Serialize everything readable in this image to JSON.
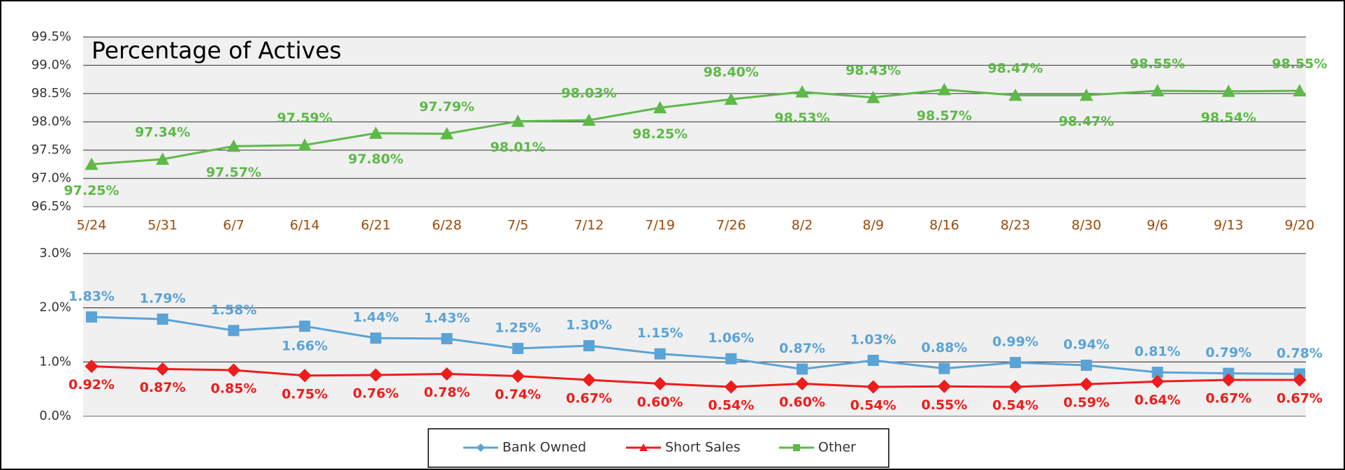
{
  "chart_data": [
    {
      "type": "line",
      "title": "Percentage of Actives",
      "categories": [
        "5/24",
        "5/31",
        "6/7",
        "6/14",
        "6/21",
        "6/28",
        "7/5",
        "7/12",
        "7/19",
        "7/26",
        "8/2",
        "8/9",
        "8/16",
        "8/23",
        "8/30",
        "9/6",
        "9/13",
        "9/20"
      ],
      "ylim": [
        96.5,
        99.5
      ],
      "yticks": [
        {
          "value": 96.5,
          "label": "96.5%"
        },
        {
          "value": 97,
          "label": "97.0%"
        },
        {
          "value": 97.5,
          "label": "97.5%"
        },
        {
          "value": 98,
          "label": "98.0%"
        },
        {
          "value": 98.5,
          "label": "98.5%"
        },
        {
          "value": 99,
          "label": "99.0%"
        },
        {
          "value": 99.5,
          "label": "99.5%"
        }
      ],
      "grid": true,
      "series": [
        {
          "name": "Other",
          "color": "#5db948",
          "marker": "triangle",
          "legend_marker": "square",
          "values": [
            97.25,
            97.34,
            97.57,
            97.59,
            97.8,
            97.79,
            98.01,
            98.03,
            98.25,
            98.4,
            98.53,
            98.43,
            98.57,
            98.47,
            98.47,
            98.55,
            98.54,
            98.55
          ],
          "value_labels": [
            "97.25%",
            "97.34%",
            "97.57%",
            "97.59%",
            "97.80%",
            "97.79%",
            "98.01%",
            "98.03%",
            "98.25%",
            "98.40%",
            "98.53%",
            "98.43%",
            "98.57%",
            "98.47%",
            "98.47%",
            "98.55%",
            "98.54%",
            "98.55%"
          ]
        }
      ]
    },
    {
      "type": "line",
      "ylim": [
        0,
        3
      ],
      "yticks": [
        {
          "value": 0,
          "label": "0.0%"
        },
        {
          "value": 1,
          "label": "1.0%"
        },
        {
          "value": 2,
          "label": "2.0%"
        },
        {
          "value": 3,
          "label": "3.0%"
        }
      ],
      "grid": true,
      "series": [
        {
          "name": "Bank Owned",
          "color": "#5aa3d6",
          "marker": "square",
          "legend_marker": "diamond",
          "values": [
            1.83,
            1.79,
            1.58,
            1.66,
            1.44,
            1.43,
            1.25,
            1.3,
            1.15,
            1.06,
            0.87,
            1.03,
            0.88,
            0.99,
            0.94,
            0.81,
            0.79,
            0.78
          ],
          "value_labels": [
            "1.83%",
            "1.79%",
            "1.58%",
            "1.66%",
            "1.44%",
            "1.43%",
            "1.25%",
            "1.30%",
            "1.15%",
            "1.06%",
            "0.87%",
            "1.03%",
            "0.88%",
            "0.99%",
            "0.94%",
            "0.81%",
            "0.79%",
            "0.78%"
          ]
        },
        {
          "name": "Short Sales",
          "color": "#ee1c1c",
          "marker": "diamond",
          "legend_marker": "triangle",
          "values": [
            0.92,
            0.87,
            0.85,
            0.75,
            0.76,
            0.78,
            0.74,
            0.67,
            0.6,
            0.54,
            0.6,
            0.54,
            0.55,
            0.54,
            0.59,
            0.64,
            0.67,
            0.67
          ],
          "value_labels": [
            "0.92%",
            "0.87%",
            "0.85%",
            "0.75%",
            "0.76%",
            "0.78%",
            "0.74%",
            "0.67%",
            "0.60%",
            "0.54%",
            "0.60%",
            "0.54%",
            "0.55%",
            "0.54%",
            "0.59%",
            "0.64%",
            "0.67%",
            "0.67%"
          ]
        }
      ]
    }
  ]
}
